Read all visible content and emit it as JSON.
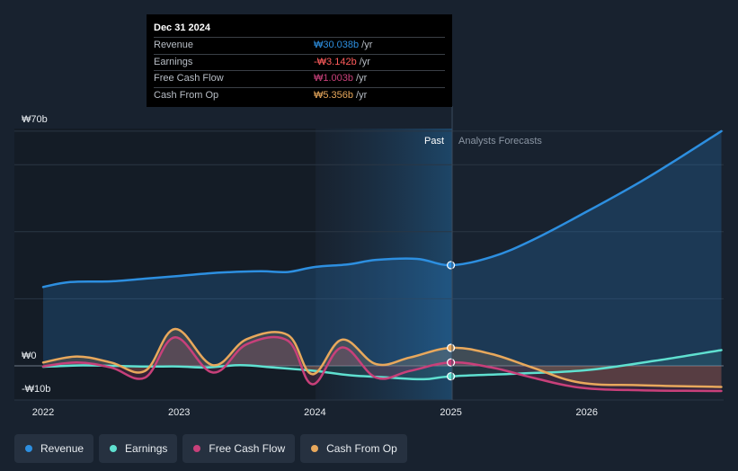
{
  "chart_data": {
    "type": "line",
    "title": "",
    "y_unit": "₩",
    "ylim": [
      -10,
      70
    ],
    "y_tick_labels": [
      "₩70b",
      "₩0",
      "-₩10b"
    ],
    "x_tick_labels": [
      "2022",
      "2023",
      "2024",
      "2025",
      "2026"
    ],
    "xlim": [
      2021.8,
      2026.99
    ],
    "past_label": "Past",
    "forecast_label": "Analysts Forecasts",
    "divider_x": 2025.0,
    "series": [
      {
        "name": "Revenue",
        "color": "#2d8fe0",
        "points": [
          [
            2022.0,
            23.5
          ],
          [
            2022.2,
            25.0
          ],
          [
            2022.5,
            25.2
          ],
          [
            2022.75,
            26.0
          ],
          [
            2023.0,
            26.8
          ],
          [
            2023.3,
            27.8
          ],
          [
            2023.6,
            28.2
          ],
          [
            2023.8,
            28.0
          ],
          [
            2024.0,
            29.5
          ],
          [
            2024.25,
            30.3
          ],
          [
            2024.45,
            31.6
          ],
          [
            2024.75,
            31.9
          ],
          [
            2025.0,
            30.04
          ],
          [
            2025.3,
            32.5
          ],
          [
            2025.6,
            37.5
          ],
          [
            2026.0,
            46.0
          ],
          [
            2026.4,
            55.0
          ],
          [
            2026.7,
            62.5
          ],
          [
            2026.99,
            70.0
          ]
        ]
      },
      {
        "name": "Earnings",
        "color": "#5fe0d0",
        "points": [
          [
            2022.0,
            -0.3
          ],
          [
            2022.25,
            0.1
          ],
          [
            2022.5,
            0.0
          ],
          [
            2022.75,
            -0.2
          ],
          [
            2023.0,
            -0.2
          ],
          [
            2023.2,
            -0.5
          ],
          [
            2023.45,
            0.2
          ],
          [
            2023.7,
            -0.5
          ],
          [
            2024.0,
            -1.5
          ],
          [
            2024.25,
            -2.8
          ],
          [
            2024.55,
            -3.5
          ],
          [
            2024.8,
            -4.0
          ],
          [
            2025.0,
            -3.14
          ],
          [
            2025.5,
            -2.3
          ],
          [
            2026.0,
            -1.3
          ],
          [
            2026.5,
            1.5
          ],
          [
            2026.99,
            4.7
          ]
        ]
      },
      {
        "name": "Free Cash Flow",
        "color": "#c8407a",
        "points": [
          [
            2022.0,
            -0.2
          ],
          [
            2022.25,
            1.0
          ],
          [
            2022.5,
            -0.5
          ],
          [
            2022.75,
            -3.5
          ],
          [
            2022.97,
            8.5
          ],
          [
            2023.25,
            -2.0
          ],
          [
            2023.5,
            6.5
          ],
          [
            2023.8,
            7.5
          ],
          [
            2023.98,
            -5.5
          ],
          [
            2024.2,
            5.5
          ],
          [
            2024.45,
            -3.5
          ],
          [
            2024.7,
            -1.5
          ],
          [
            2025.0,
            1.0
          ],
          [
            2025.3,
            -0.5
          ],
          [
            2025.6,
            -3.5
          ],
          [
            2025.95,
            -6.5
          ],
          [
            2026.4,
            -7.3
          ],
          [
            2026.99,
            -7.5
          ]
        ]
      },
      {
        "name": "Cash From Op",
        "color": "#e8a85c",
        "points": [
          [
            2022.0,
            1.0
          ],
          [
            2022.25,
            2.8
          ],
          [
            2022.5,
            1.0
          ],
          [
            2022.75,
            -1.5
          ],
          [
            2022.97,
            11.0
          ],
          [
            2023.25,
            0.2
          ],
          [
            2023.5,
            8.0
          ],
          [
            2023.8,
            9.2
          ],
          [
            2023.98,
            -2.5
          ],
          [
            2024.2,
            7.8
          ],
          [
            2024.45,
            0.5
          ],
          [
            2024.7,
            2.5
          ],
          [
            2025.0,
            5.36
          ],
          [
            2025.3,
            3.5
          ],
          [
            2025.6,
            -0.5
          ],
          [
            2025.95,
            -5.0
          ],
          [
            2026.4,
            -5.8
          ],
          [
            2026.99,
            -6.3
          ]
        ]
      }
    ]
  },
  "tooltip": {
    "date": "Dec 31 2024",
    "rows": [
      {
        "label": "Revenue",
        "value": "₩30.038b",
        "unit": "/yr",
        "color": "#2d8fe0"
      },
      {
        "label": "Earnings",
        "value": "-₩3.142b",
        "unit": "/yr",
        "color": "#ff5c5c"
      },
      {
        "label": "Free Cash Flow",
        "value": "₩1.003b",
        "unit": "/yr",
        "color": "#c8407a"
      },
      {
        "label": "Cash From Op",
        "value": "₩5.356b",
        "unit": "/yr",
        "color": "#e8a85c"
      }
    ]
  },
  "legend": [
    {
      "label": "Revenue",
      "color": "#2d8fe0"
    },
    {
      "label": "Earnings",
      "color": "#5fe0d0"
    },
    {
      "label": "Free Cash Flow",
      "color": "#c8407a"
    },
    {
      "label": "Cash From Op",
      "color": "#e8a85c"
    }
  ]
}
